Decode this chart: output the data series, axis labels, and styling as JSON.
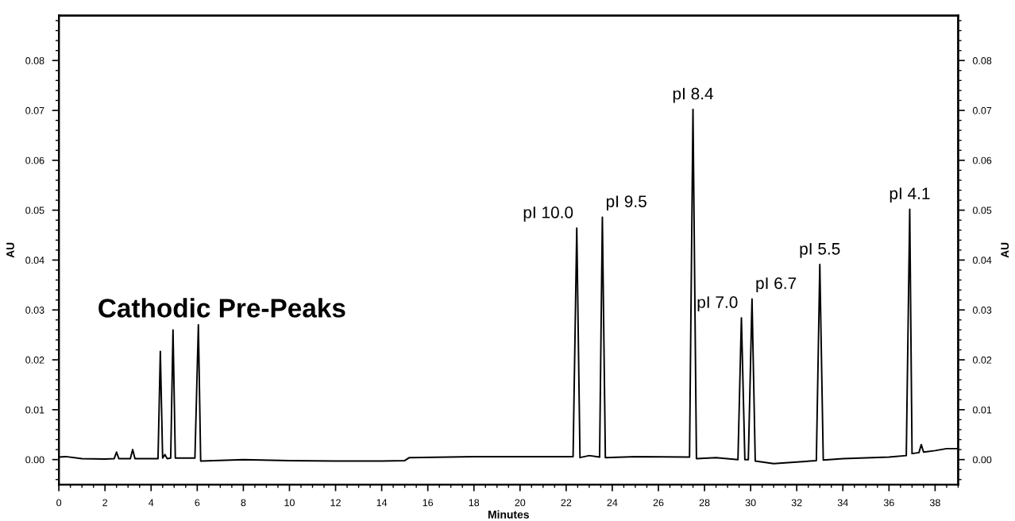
{
  "chart_data": {
    "type": "line",
    "xlabel": "Minutes",
    "ylabel": "AU",
    "y2label": "AU",
    "xlim": [
      0,
      39
    ],
    "ylim": [
      -0.005,
      0.089
    ],
    "y2lim": [
      -0.005,
      0.089
    ],
    "xticks": [
      0,
      2,
      4,
      6,
      8,
      10,
      12,
      14,
      16,
      18,
      20,
      22,
      24,
      26,
      28,
      30,
      32,
      34,
      36,
      38
    ],
    "yticks": [
      {
        "value": 0,
        "label": "0.00"
      },
      {
        "value": 0.01,
        "label": "0.01"
      },
      {
        "value": 0.02,
        "label": "0.02"
      },
      {
        "value": 0.03,
        "label": "0.03"
      },
      {
        "value": 0.04,
        "label": "0.04"
      },
      {
        "value": 0.05,
        "label": "0.05"
      },
      {
        "value": 0.06,
        "label": "0.06"
      },
      {
        "value": 0.07,
        "label": "0.07"
      },
      {
        "value": 0.08,
        "label": "0.08"
      }
    ],
    "y2ticks": [
      {
        "value": 0,
        "label": "0.00"
      },
      {
        "value": 0.01,
        "label": "0.01"
      },
      {
        "value": 0.02,
        "label": "0.02"
      },
      {
        "value": 0.03,
        "label": "0.03"
      },
      {
        "value": 0.04,
        "label": "0.04"
      },
      {
        "value": 0.05,
        "label": "0.05"
      },
      {
        "value": 0.06,
        "label": "0.06"
      },
      {
        "value": 0.07,
        "label": "0.07"
      },
      {
        "value": 0.08,
        "label": "0.08"
      }
    ],
    "grid": false,
    "legend": false,
    "marker": "none",
    "line_style": "solid",
    "series": [
      {
        "color": "#000000",
        "x": [
          0,
          0.3,
          1,
          2,
          2.4,
          2.5,
          2.6,
          3.1,
          3.2,
          3.3,
          4.3,
          4.4,
          4.5,
          4.6,
          4.7,
          4.85,
          4.95,
          5.05,
          5.9,
          6.05,
          6.15,
          8,
          10,
          12,
          14,
          15,
          15.2,
          18,
          20,
          22.3,
          22.46,
          22.6,
          23.0,
          23.45,
          23.57,
          23.7,
          25,
          27.35,
          27.5,
          27.65,
          28.5,
          29.45,
          29.6,
          29.75,
          29.9,
          30.06,
          30.2,
          31,
          32,
          32.85,
          33.0,
          33.15,
          34,
          36,
          36.75,
          36.9,
          37.0,
          37.3,
          37.4,
          37.5,
          38,
          38.5,
          39
        ],
        "values": [
          0.0005,
          0.0006,
          0.0002,
          0.0001,
          0.0002,
          0.0015,
          0.0002,
          0.0002,
          0.002,
          0.0002,
          0.0002,
          0.0217,
          0.0003,
          0.001,
          0.0002,
          0.0003,
          0.026,
          0.0003,
          0.0003,
          0.027,
          -0.0003,
          0,
          -0.0002,
          -0.0003,
          -0.0003,
          -0.0002,
          0.0004,
          0.0006,
          0.0006,
          0.0006,
          0.0464,
          0.0004,
          0.0008,
          0.0005,
          0.0486,
          0.0004,
          0.0006,
          0.0005,
          0.0702,
          0.0002,
          0.0004,
          0,
          0.0284,
          0,
          0,
          0.0322,
          -0.0003,
          -0.0008,
          -0.0005,
          -0.0002,
          0.0391,
          -0.0001,
          0.0002,
          0.0005,
          0.0008,
          0.0502,
          0.0012,
          0.0014,
          0.003,
          0.0015,
          0.0018,
          0.0022,
          0.0022
        ]
      }
    ],
    "annotations": [
      "Cathodic Pre-Peaks",
      {
        "text": "pI 10.0",
        "x": 22.46,
        "y": 0.0464
      },
      {
        "text": "pI 9.5",
        "x": 23.57,
        "y": 0.0486
      },
      {
        "text": "pI 8.4",
        "x": 27.5,
        "y": 0.0702
      },
      {
        "text": "pI 7.0",
        "x": 29.6,
        "y": 0.0284
      },
      {
        "text": "pI 6.7",
        "x": 30.06,
        "y": 0.0322
      },
      {
        "text": "pI 5.5",
        "x": 33.0,
        "y": 0.0391
      },
      {
        "text": "pI 4.1",
        "x": 36.9,
        "y": 0.0502
      }
    ]
  }
}
